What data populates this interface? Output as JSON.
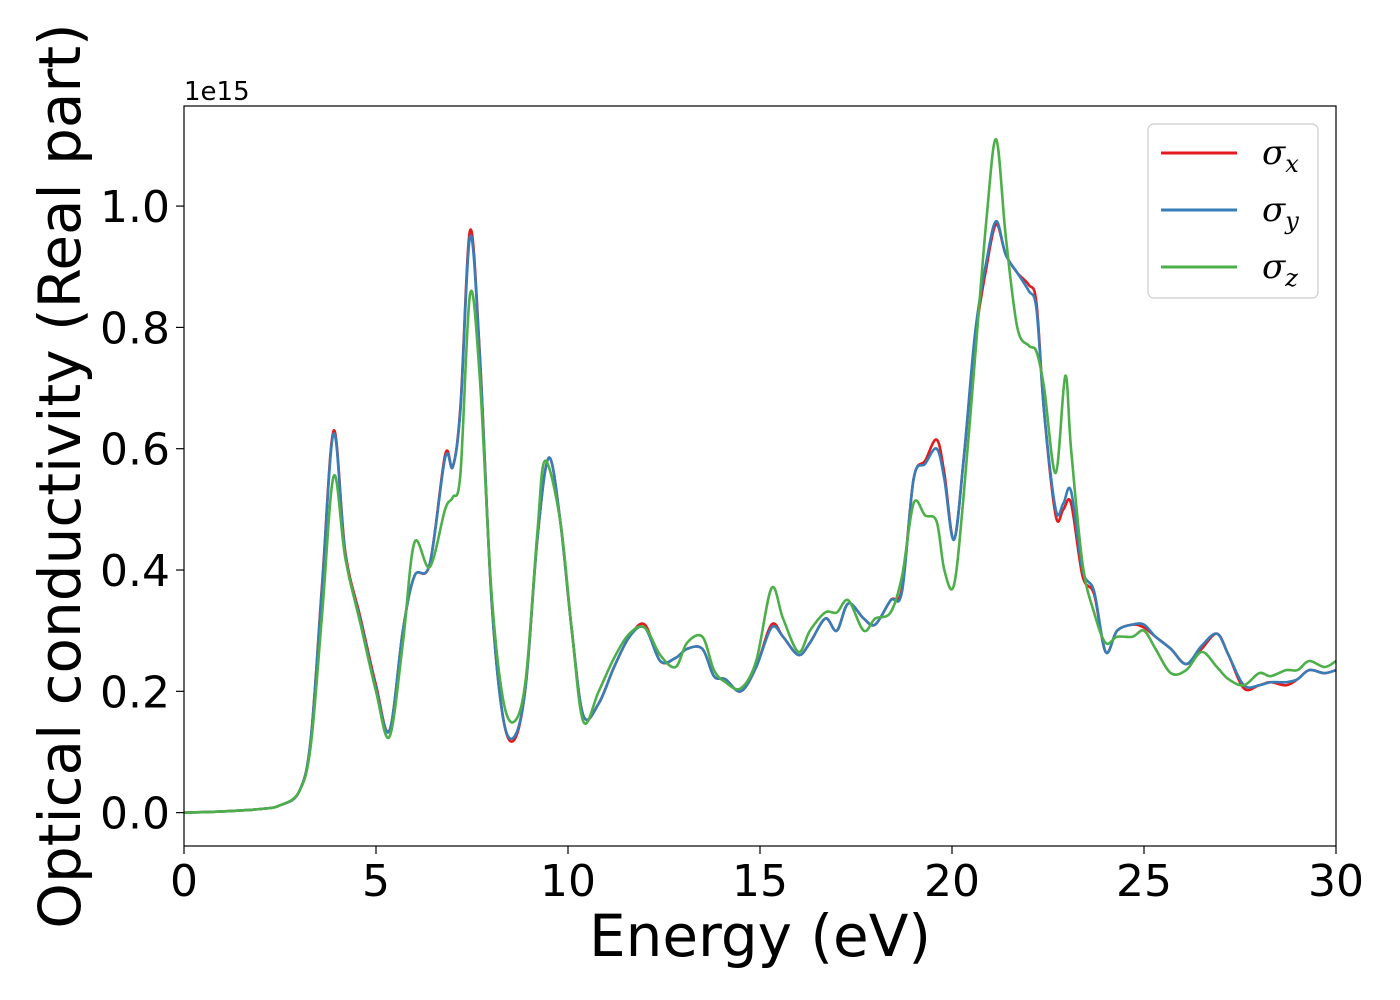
{
  "chart_data": {
    "type": "line",
    "title": "",
    "xlabel": "Energy (eV)",
    "ylabel": "Optical conductivity (Real part)",
    "y_offset_label": "1e15",
    "xlim": [
      0,
      30
    ],
    "ylim": [
      -0.055,
      1.165
    ],
    "xticks": [
      0,
      5,
      10,
      15,
      20,
      25,
      30
    ],
    "xtick_labels": [
      "0",
      "5",
      "10",
      "15",
      "20",
      "25",
      "30"
    ],
    "yticks": [
      0.0,
      0.2,
      0.4,
      0.6,
      0.8,
      1.0
    ],
    "ytick_labels": [
      "0.0",
      "0.2",
      "0.4",
      "0.6",
      "0.8",
      "1.0"
    ],
    "grid": false,
    "legend_position": "top-right",
    "series": [
      {
        "name": "σx",
        "symbol": "σ",
        "subscript": "x",
        "color": "#e41a1c",
        "x": [
          0,
          1,
          2,
          2.5,
          3,
          3.3,
          3.6,
          3.9,
          4.2,
          4.6,
          5.0,
          5.35,
          5.7,
          6.0,
          6.4,
          6.8,
          7.0,
          7.2,
          7.45,
          7.7,
          8.0,
          8.3,
          8.6,
          8.9,
          9.2,
          9.5,
          9.8,
          10.1,
          10.4,
          10.8,
          11.2,
          11.6,
          12.0,
          12.4,
          12.8,
          13.1,
          13.5,
          13.8,
          14.1,
          14.5,
          14.9,
          15.3,
          15.6,
          16.0,
          16.3,
          16.7,
          17.0,
          17.3,
          17.7,
          18.0,
          18.4,
          18.7,
          19.0,
          19.3,
          19.6,
          19.8,
          20.05,
          20.3,
          20.6,
          20.9,
          21.15,
          21.4,
          21.7,
          22.0,
          22.2,
          22.4,
          22.7,
          22.9,
          23.1,
          23.4,
          23.7,
          24.0,
          24.3,
          24.7,
          25.0,
          25.3,
          25.7,
          26.1,
          26.5,
          26.9,
          27.2,
          27.6,
          28.0,
          28.3,
          28.7,
          29.0,
          29.3,
          29.7,
          30.0
        ],
        "y": [
          0.0,
          0.002,
          0.006,
          0.012,
          0.035,
          0.12,
          0.38,
          0.63,
          0.43,
          0.32,
          0.21,
          0.135,
          0.3,
          0.39,
          0.41,
          0.59,
          0.57,
          0.67,
          0.96,
          0.76,
          0.36,
          0.16,
          0.12,
          0.21,
          0.45,
          0.585,
          0.48,
          0.3,
          0.16,
          0.18,
          0.24,
          0.29,
          0.31,
          0.25,
          0.255,
          0.27,
          0.27,
          0.225,
          0.22,
          0.2,
          0.24,
          0.31,
          0.29,
          0.26,
          0.28,
          0.32,
          0.3,
          0.345,
          0.32,
          0.31,
          0.35,
          0.37,
          0.55,
          0.58,
          0.615,
          0.56,
          0.45,
          0.58,
          0.78,
          0.9,
          0.97,
          0.92,
          0.89,
          0.87,
          0.84,
          0.66,
          0.49,
          0.5,
          0.51,
          0.39,
          0.36,
          0.265,
          0.3,
          0.31,
          0.305,
          0.29,
          0.27,
          0.245,
          0.27,
          0.295,
          0.26,
          0.205,
          0.21,
          0.215,
          0.21,
          0.22,
          0.235,
          0.23,
          0.235
        ]
      },
      {
        "name": "σy",
        "symbol": "σ",
        "subscript": "y",
        "color": "#377eb8",
        "x": [
          0,
          1,
          2,
          2.5,
          3,
          3.3,
          3.6,
          3.9,
          4.2,
          4.6,
          5.0,
          5.35,
          5.7,
          6.0,
          6.4,
          6.8,
          7.0,
          7.2,
          7.45,
          7.7,
          8.0,
          8.3,
          8.6,
          8.9,
          9.2,
          9.5,
          9.8,
          10.1,
          10.4,
          10.8,
          11.2,
          11.6,
          12.0,
          12.4,
          12.8,
          13.1,
          13.5,
          13.8,
          14.1,
          14.5,
          14.9,
          15.3,
          15.6,
          16.0,
          16.3,
          16.7,
          17.0,
          17.3,
          17.7,
          18.0,
          18.4,
          18.7,
          19.0,
          19.3,
          19.6,
          19.8,
          20.05,
          20.3,
          20.6,
          20.9,
          21.15,
          21.4,
          21.7,
          22.0,
          22.2,
          22.4,
          22.7,
          22.9,
          23.1,
          23.4,
          23.7,
          24.0,
          24.3,
          24.7,
          25.0,
          25.3,
          25.7,
          26.1,
          26.5,
          26.9,
          27.2,
          27.6,
          28.0,
          28.3,
          28.7,
          29.0,
          29.3,
          29.7,
          30.0
        ],
        "y": [
          0.0,
          0.002,
          0.006,
          0.012,
          0.035,
          0.12,
          0.375,
          0.625,
          0.425,
          0.315,
          0.205,
          0.135,
          0.3,
          0.39,
          0.41,
          0.585,
          0.57,
          0.665,
          0.95,
          0.755,
          0.36,
          0.16,
          0.125,
          0.21,
          0.45,
          0.585,
          0.48,
          0.3,
          0.16,
          0.18,
          0.24,
          0.29,
          0.305,
          0.25,
          0.255,
          0.27,
          0.27,
          0.225,
          0.22,
          0.2,
          0.24,
          0.305,
          0.29,
          0.26,
          0.28,
          0.32,
          0.3,
          0.345,
          0.32,
          0.31,
          0.35,
          0.365,
          0.55,
          0.575,
          0.6,
          0.55,
          0.45,
          0.58,
          0.79,
          0.91,
          0.975,
          0.92,
          0.89,
          0.86,
          0.83,
          0.66,
          0.5,
          0.51,
          0.53,
          0.4,
          0.365,
          0.265,
          0.3,
          0.31,
          0.31,
          0.29,
          0.27,
          0.245,
          0.275,
          0.295,
          0.26,
          0.21,
          0.21,
          0.215,
          0.215,
          0.22,
          0.235,
          0.23,
          0.235
        ]
      },
      {
        "name": "σz",
        "symbol": "σ",
        "subscript": "z",
        "color": "#4daf4a",
        "x": [
          0,
          1,
          2,
          2.5,
          3,
          3.3,
          3.6,
          3.9,
          4.2,
          4.6,
          5.0,
          5.35,
          5.7,
          6.0,
          6.4,
          6.8,
          7.0,
          7.2,
          7.45,
          7.7,
          8.0,
          8.3,
          8.6,
          8.9,
          9.2,
          9.4,
          9.8,
          10.1,
          10.4,
          10.8,
          11.2,
          11.6,
          12.0,
          12.4,
          12.8,
          13.1,
          13.5,
          13.8,
          14.1,
          14.5,
          14.9,
          15.3,
          15.6,
          16.0,
          16.3,
          16.7,
          17.0,
          17.3,
          17.7,
          18.0,
          18.4,
          18.7,
          19.0,
          19.3,
          19.6,
          19.8,
          20.05,
          20.3,
          20.6,
          20.9,
          21.15,
          21.4,
          21.7,
          22.0,
          22.2,
          22.4,
          22.7,
          22.95,
          23.1,
          23.4,
          23.7,
          24.0,
          24.3,
          24.7,
          25.0,
          25.3,
          25.7,
          26.1,
          26.5,
          26.9,
          27.2,
          27.6,
          28.0,
          28.3,
          28.7,
          29.0,
          29.3,
          29.7,
          30.0
        ],
        "y": [
          0.0,
          0.002,
          0.006,
          0.012,
          0.035,
          0.11,
          0.33,
          0.555,
          0.42,
          0.31,
          0.2,
          0.125,
          0.28,
          0.445,
          0.405,
          0.5,
          0.52,
          0.56,
          0.855,
          0.72,
          0.37,
          0.19,
          0.15,
          0.22,
          0.46,
          0.58,
          0.48,
          0.3,
          0.15,
          0.2,
          0.255,
          0.295,
          0.305,
          0.26,
          0.24,
          0.28,
          0.29,
          0.235,
          0.215,
          0.205,
          0.25,
          0.37,
          0.32,
          0.265,
          0.3,
          0.33,
          0.33,
          0.35,
          0.3,
          0.32,
          0.33,
          0.39,
          0.51,
          0.49,
          0.48,
          0.4,
          0.375,
          0.52,
          0.75,
          0.98,
          1.11,
          0.95,
          0.8,
          0.77,
          0.76,
          0.7,
          0.56,
          0.72,
          0.6,
          0.41,
          0.33,
          0.28,
          0.29,
          0.29,
          0.3,
          0.27,
          0.23,
          0.235,
          0.265,
          0.24,
          0.22,
          0.21,
          0.23,
          0.225,
          0.235,
          0.235,
          0.25,
          0.24,
          0.25
        ]
      }
    ]
  }
}
